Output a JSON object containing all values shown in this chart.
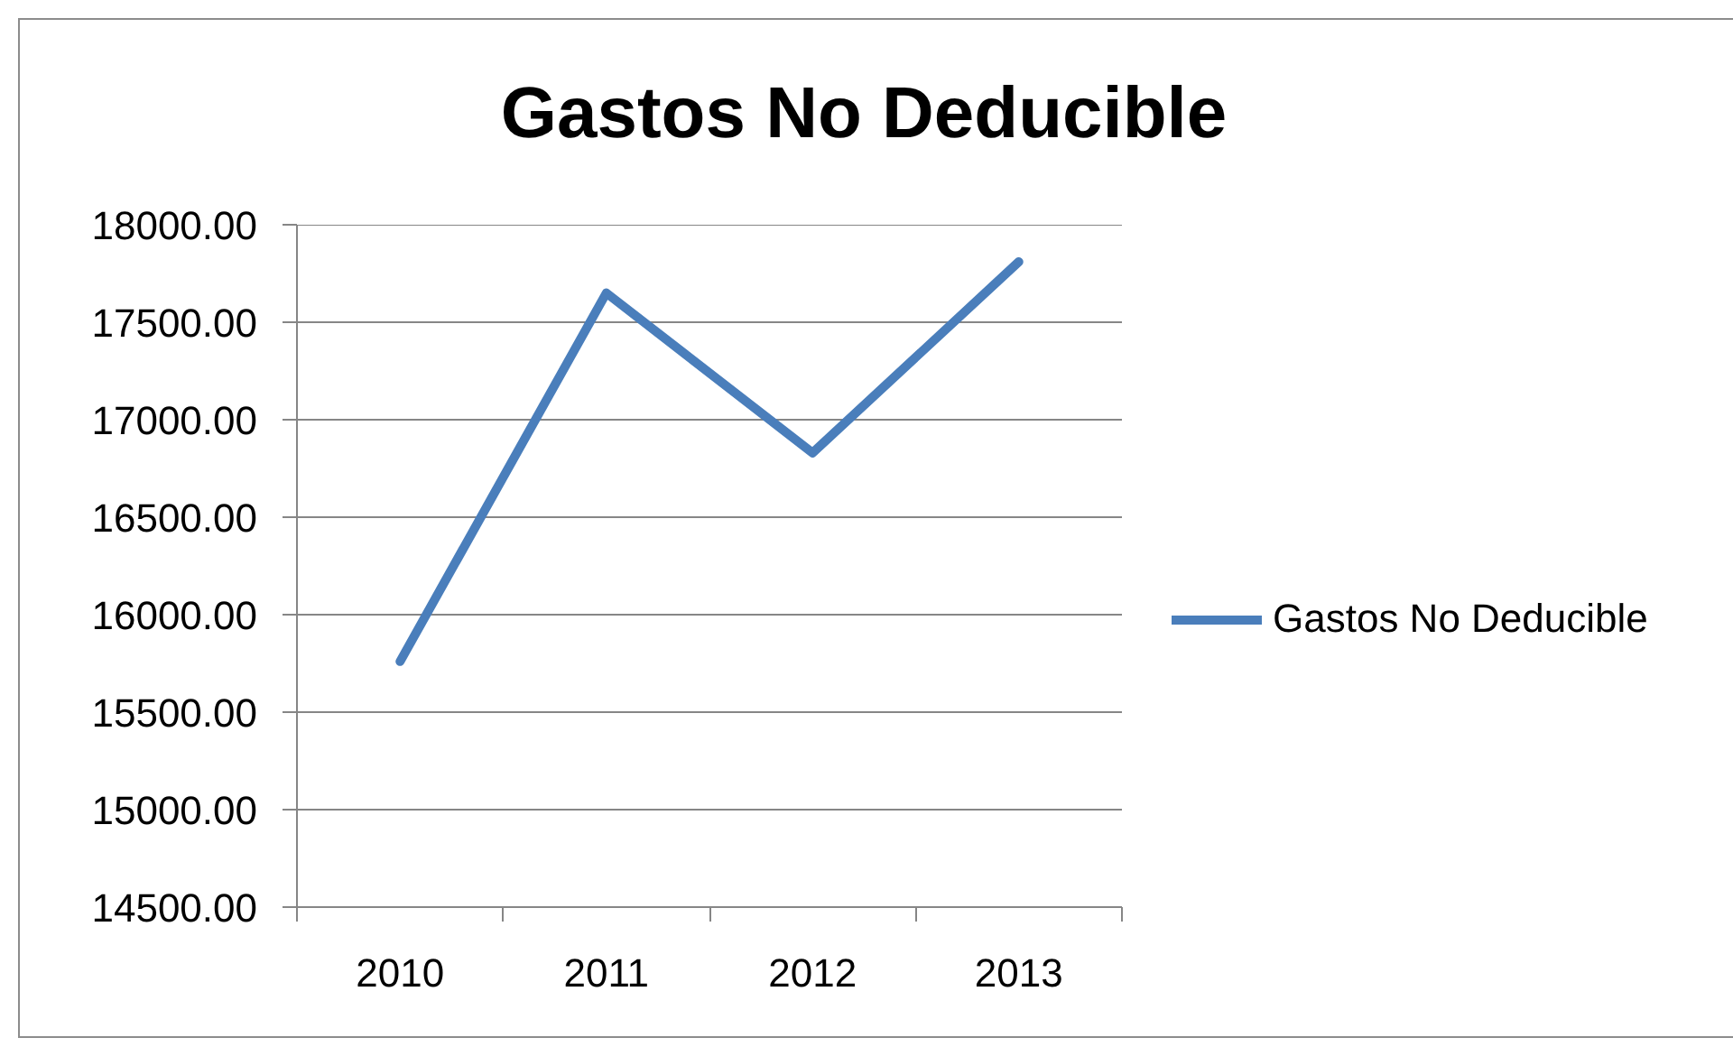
{
  "chart_data": {
    "type": "line",
    "title": "Gastos No Deducible",
    "categories": [
      "2010",
      "2011",
      "2012",
      "2013"
    ],
    "series": [
      {
        "name": "Gastos No Deducible",
        "color": "#4a7ebb",
        "values": [
          15760,
          17650,
          16830,
          17810
        ]
      }
    ],
    "ylim": [
      14500,
      18000
    ],
    "yticks": [
      {
        "value": 14500,
        "label": "14500.00"
      },
      {
        "value": 15000,
        "label": "15000.00"
      },
      {
        "value": 15500,
        "label": "15500.00"
      },
      {
        "value": 16000,
        "label": "16000.00"
      },
      {
        "value": 16500,
        "label": "16500.00"
      },
      {
        "value": 17000,
        "label": "17000.00"
      },
      {
        "value": 17500,
        "label": "17500.00"
      },
      {
        "value": 18000,
        "label": "18000.00"
      }
    ],
    "grid": "y",
    "legend": "right",
    "marker": "none",
    "line_style": "solid"
  }
}
